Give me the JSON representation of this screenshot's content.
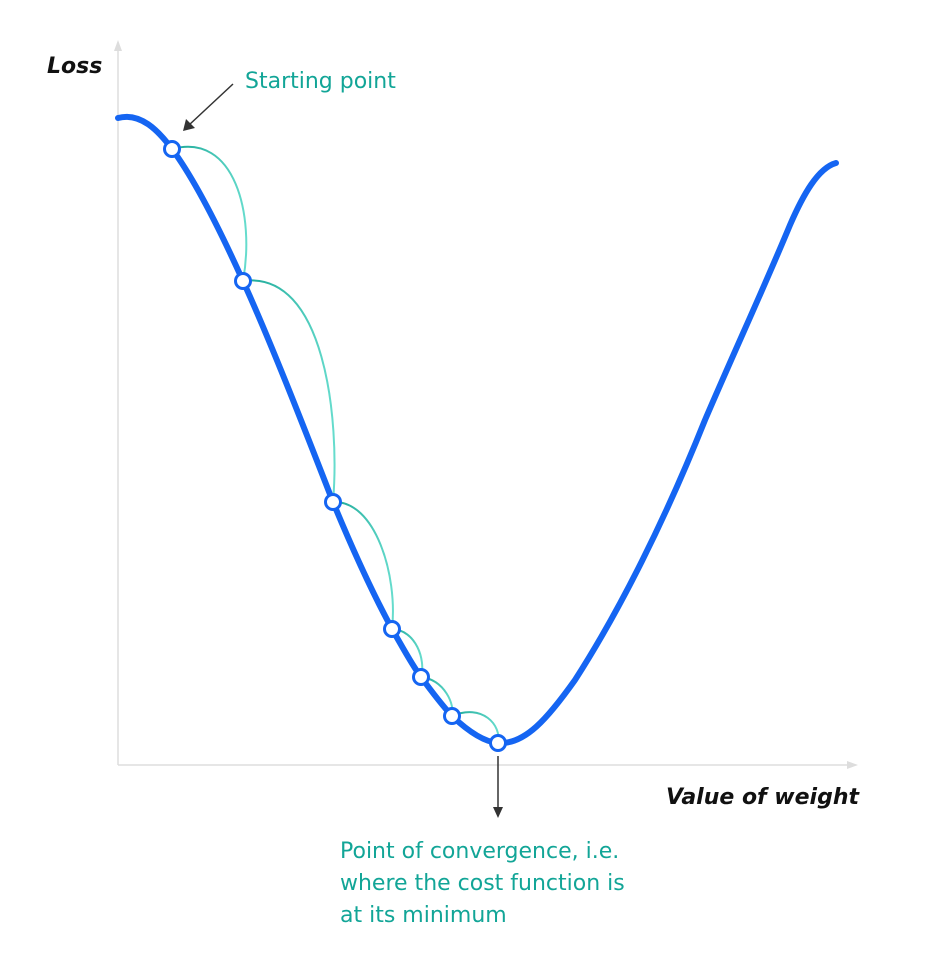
{
  "diagram": {
    "y_axis_label": "Loss",
    "x_axis_label": "Value of weight",
    "annotations": {
      "start": "Starting point",
      "convergence": [
        "Point of convergence, i.e.",
        "where the cost function is",
        "at its minimum"
      ]
    },
    "steps": 7,
    "colors": {
      "curve": "#1565f2",
      "arc": "#66dccd",
      "arc_dark": "#1aa796",
      "axis": "#dddddd",
      "arrow": "#333333",
      "annotation_text": "#12a597",
      "point_fill": "#ffffff"
    }
  }
}
